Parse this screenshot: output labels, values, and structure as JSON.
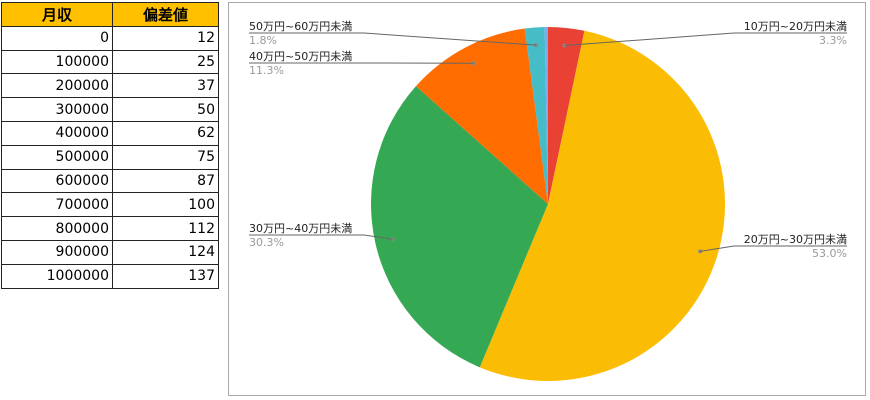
{
  "table": {
    "headers": [
      "月収",
      "偏差値"
    ],
    "rows": [
      [
        "0",
        "12"
      ],
      [
        "100000",
        "25"
      ],
      [
        "200000",
        "37"
      ],
      [
        "300000",
        "50"
      ],
      [
        "400000",
        "62"
      ],
      [
        "500000",
        "75"
      ],
      [
        "600000",
        "87"
      ],
      [
        "700000",
        "100"
      ],
      [
        "800000",
        "112"
      ],
      [
        "900000",
        "124"
      ],
      [
        "1000000",
        "137"
      ]
    ]
  },
  "chart_data": {
    "type": "pie",
    "start": "top",
    "direction": "clockwise",
    "legend": "labels outside with leader lines",
    "slices": [
      {
        "label": "10万円~20万円未満",
        "value": 3.3,
        "pct": "3.3%",
        "color": "#E94235"
      },
      {
        "label": "20万円~30万円未満",
        "value": 53.0,
        "pct": "53.0%",
        "color": "#FBBC04"
      },
      {
        "label": "30万円~40万円未満",
        "value": 30.3,
        "pct": "30.3%",
        "color": "#34A853"
      },
      {
        "label": "40万円~50万円未満",
        "value": 11.3,
        "pct": "11.3%",
        "color": "#FF6D01"
      },
      {
        "label": "50万円~60万円未満",
        "value": 1.8,
        "pct": "1.8%",
        "color": "#46BDC6"
      },
      {
        "value": 0.3,
        "color": "#7BAAF7"
      }
    ]
  }
}
